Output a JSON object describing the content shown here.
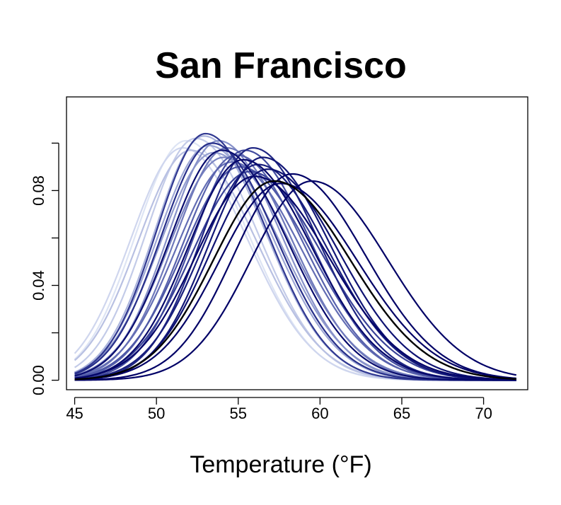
{
  "chart_data": {
    "type": "line",
    "title": "San Francisco",
    "xlabel": "Temperature (°F)",
    "ylabel": "",
    "xlim": [
      44.5,
      72.7
    ],
    "ylim": [
      -0.004,
      0.1195
    ],
    "x_ticks": [
      45,
      50,
      55,
      60,
      65,
      70
    ],
    "x_tick_labels": [
      "45",
      "50",
      "55",
      "60",
      "65",
      "70"
    ],
    "y_ticks": [
      0.0,
      0.02,
      0.04,
      0.06,
      0.08,
      0.1
    ],
    "y_tick_labels": [
      "0.00",
      "",
      "0.04",
      "",
      "0.08",
      ""
    ],
    "x_range": [
      45,
      72
    ],
    "grid": false,
    "legend": "none",
    "colors": {
      "lightest": "#dde4f4",
      "darkest": "#000066",
      "highlight": "#000000"
    },
    "series": [
      {
        "peak_x": 51.8,
        "peak_y": 0.101,
        "color": "#dde4f4"
      },
      {
        "peak_x": 51.6,
        "peak_y": 0.098,
        "color": "#cfd6ee"
      },
      {
        "peak_x": 52.4,
        "peak_y": 0.102,
        "color": "#c3cbe8"
      },
      {
        "peak_x": 52.1,
        "peak_y": 0.097,
        "color": "#b8c0e2"
      },
      {
        "peak_x": 52.9,
        "peak_y": 0.103,
        "color": "#abb4dc"
      },
      {
        "peak_x": 53.2,
        "peak_y": 0.099,
        "color": "#9ea7d5"
      },
      {
        "peak_x": 53.5,
        "peak_y": 0.096,
        "color": "#939dcf"
      },
      {
        "peak_x": 53.8,
        "peak_y": 0.101,
        "color": "#8791c9"
      },
      {
        "peak_x": 54.1,
        "peak_y": 0.094,
        "color": "#7b85c2"
      },
      {
        "peak_x": 54.3,
        "peak_y": 0.098,
        "color": "#6f79bb"
      },
      {
        "peak_x": 54.6,
        "peak_y": 0.092,
        "color": "#636db4"
      },
      {
        "peak_x": 54.9,
        "peak_y": 0.095,
        "color": "#5862ad"
      },
      {
        "peak_x": 55.1,
        "peak_y": 0.09,
        "color": "#4d57a6"
      },
      {
        "peak_x": 55.4,
        "peak_y": 0.097,
        "color": "#434c9f"
      },
      {
        "peak_x": 55.7,
        "peak_y": 0.088,
        "color": "#394298"
      },
      {
        "peak_x": 53.0,
        "peak_y": 0.104,
        "color": "#303891"
      },
      {
        "peak_x": 53.4,
        "peak_y": 0.1,
        "color": "#272f8a"
      },
      {
        "peak_x": 55.9,
        "peak_y": 0.098,
        "color": "#1f2683"
      },
      {
        "peak_x": 56.2,
        "peak_y": 0.091,
        "color": "#181e7d"
      },
      {
        "peak_x": 56.5,
        "peak_y": 0.094,
        "color": "#121777"
      },
      {
        "peak_x": 56.8,
        "peak_y": 0.089,
        "color": "#0d1172"
      },
      {
        "peak_x": 54.0,
        "peak_y": 0.097,
        "color": "#090c6e"
      },
      {
        "peak_x": 55.3,
        "peak_y": 0.093,
        "color": "#06086b"
      },
      {
        "peak_x": 56.0,
        "peak_y": 0.086,
        "color": "#040569"
      },
      {
        "peak_x": 58.3,
        "peak_y": 0.087,
        "color": "#000066"
      },
      {
        "peak_x": 59.5,
        "peak_y": 0.084,
        "color": "#000066"
      },
      {
        "peak_x": 57.6,
        "peak_y": 0.083,
        "color": "#000066"
      },
      {
        "peak_x": 57.2,
        "peak_y": 0.084,
        "color": "#000000"
      }
    ]
  }
}
